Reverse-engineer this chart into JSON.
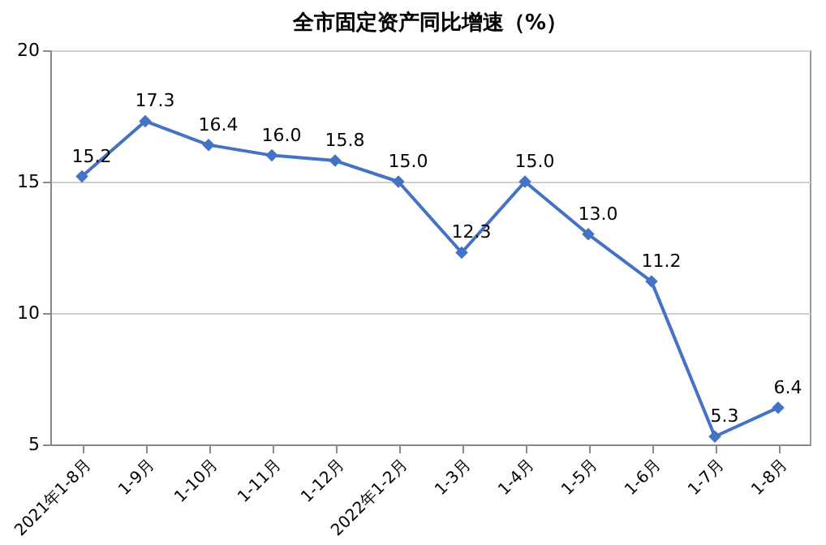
{
  "chart_data": {
    "type": "line",
    "title": "全市固定资产同比增速（%）",
    "categories": [
      "2021年1-8月",
      "1-9月",
      "1-10月",
      "1-11月",
      "1-12月",
      "2022年1-2月",
      "1-3月",
      "1-4月",
      "1-5月",
      "1-6月",
      "1-7月",
      "1-8月"
    ],
    "series": [
      {
        "color": "#4472c4",
        "values": [
          15.2,
          17.3,
          16.4,
          16.0,
          15.8,
          15.0,
          12.3,
          15.0,
          13.0,
          11.2,
          5.3,
          6.4
        ],
        "value_labels": [
          "15.2",
          "17.3",
          "16.4",
          "16.0",
          "15.8",
          "15.0",
          "12.3",
          "15.0",
          "13.0",
          "11.2",
          "5.3",
          "6.4"
        ]
      }
    ],
    "ylim": [
      5,
      20
    ],
    "yticks": [
      5,
      10,
      15,
      20
    ],
    "grid": "y",
    "legend": false,
    "marker": "diamond",
    "line_style": "solid"
  }
}
